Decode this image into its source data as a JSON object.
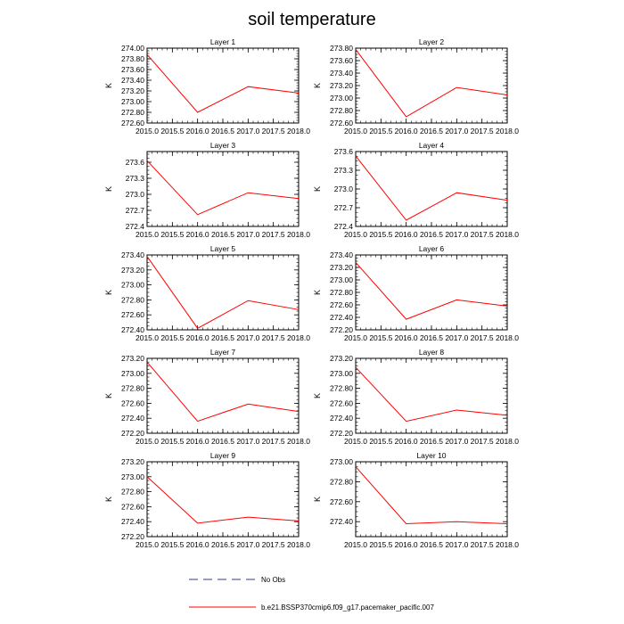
{
  "figure_title": "soil temperature",
  "colors": {
    "model_line": "#ff0000",
    "obs_line": "#2e3a8c",
    "axis": "#000000"
  },
  "legend": {
    "obs_label": "No Obs",
    "model_label": "b.e21.BSSP370cmip6.f09_g17.pacemaker_pacific.007"
  },
  "chart_data": [
    {
      "type": "line",
      "title": "Layer 1",
      "ylabel": "K",
      "x": [
        2015.0,
        2016.0,
        2017.0,
        2018.0
      ],
      "values": [
        273.88,
        272.8,
        273.28,
        273.16
      ],
      "xlim": [
        2015.0,
        2018.0
      ],
      "ylim": [
        272.6,
        274.0
      ],
      "xticks": [
        "2015.0",
        "2015.5",
        "2016.0",
        "2016.5",
        "2017.0",
        "2017.5",
        "2018.0"
      ],
      "yticks": [
        "272.60",
        "272.80",
        "273.00",
        "273.20",
        "273.40",
        "273.60",
        "273.80",
        "274.00"
      ]
    },
    {
      "type": "line",
      "title": "Layer 2",
      "ylabel": "K",
      "x": [
        2015.0,
        2016.0,
        2017.0,
        2018.0
      ],
      "values": [
        273.78,
        272.7,
        273.17,
        273.05
      ],
      "xlim": [
        2015.0,
        2018.0
      ],
      "ylim": [
        272.6,
        273.8
      ],
      "xticks": [
        "2015.0",
        "2015.5",
        "2016.0",
        "2016.5",
        "2017.0",
        "2017.5",
        "2018.0"
      ],
      "yticks": [
        "272.60",
        "272.80",
        "273.00",
        "273.20",
        "273.40",
        "273.60",
        "273.80"
      ]
    },
    {
      "type": "line",
      "title": "Layer 3",
      "ylabel": "K",
      "x": [
        2015.0,
        2016.0,
        2017.0,
        2018.0
      ],
      "values": [
        273.63,
        272.62,
        273.03,
        272.92
      ],
      "xlim": [
        2015.0,
        2018.0
      ],
      "ylim": [
        272.4,
        273.8
      ],
      "xticks": [
        "2015.0",
        "2015.5",
        "2016.0",
        "2016.5",
        "2017.0",
        "2017.5",
        "2018.0"
      ],
      "yticks": [
        "272.4",
        "272.7",
        "273.0",
        "273.3",
        "273.6"
      ]
    },
    {
      "type": "line",
      "title": "Layer 4",
      "ylabel": "K",
      "x": [
        2015.0,
        2016.0,
        2017.0,
        2018.0
      ],
      "values": [
        273.53,
        272.5,
        272.94,
        272.82
      ],
      "xlim": [
        2015.0,
        2018.0
      ],
      "ylim": [
        272.4,
        273.6
      ],
      "xticks": [
        "2015.0",
        "2015.5",
        "2016.0",
        "2016.5",
        "2017.0",
        "2017.5",
        "2018.0"
      ],
      "yticks": [
        "272.4",
        "272.7",
        "273.0",
        "273.3",
        "273.6"
      ]
    },
    {
      "type": "line",
      "title": "Layer 5",
      "ylabel": "K",
      "x": [
        2015.0,
        2016.0,
        2017.0,
        2018.0
      ],
      "values": [
        273.38,
        272.42,
        272.79,
        272.67
      ],
      "xlim": [
        2015.0,
        2018.0
      ],
      "ylim": [
        272.4,
        273.4
      ],
      "xticks": [
        "2015.0",
        "2015.5",
        "2016.0",
        "2016.5",
        "2017.0",
        "2017.5",
        "2018.0"
      ],
      "yticks": [
        "272.40",
        "272.60",
        "272.80",
        "273.00",
        "273.20",
        "273.40"
      ]
    },
    {
      "type": "line",
      "title": "Layer 6",
      "ylabel": "K",
      "x": [
        2015.0,
        2016.0,
        2017.0,
        2018.0
      ],
      "values": [
        273.28,
        272.37,
        272.68,
        272.58
      ],
      "xlim": [
        2015.0,
        2018.0
      ],
      "ylim": [
        272.2,
        273.4
      ],
      "xticks": [
        "2015.0",
        "2015.5",
        "2016.0",
        "2016.5",
        "2017.0",
        "2017.5",
        "2018.0"
      ],
      "yticks": [
        "272.20",
        "272.40",
        "272.60",
        "272.80",
        "273.00",
        "273.20",
        "273.40"
      ]
    },
    {
      "type": "line",
      "title": "Layer 7",
      "ylabel": "K",
      "x": [
        2015.0,
        2016.0,
        2017.0,
        2018.0
      ],
      "values": [
        273.15,
        272.36,
        272.59,
        272.49
      ],
      "xlim": [
        2015.0,
        2018.0
      ],
      "ylim": [
        272.2,
        273.2
      ],
      "xticks": [
        "2015.0",
        "2015.5",
        "2016.0",
        "2016.5",
        "2017.0",
        "2017.5",
        "2018.0"
      ],
      "yticks": [
        "272.20",
        "272.40",
        "272.60",
        "272.80",
        "273.00",
        "273.20"
      ]
    },
    {
      "type": "line",
      "title": "Layer 8",
      "ylabel": "K",
      "x": [
        2015.0,
        2016.0,
        2017.0,
        2018.0
      ],
      "values": [
        273.08,
        272.36,
        272.51,
        272.44
      ],
      "xlim": [
        2015.0,
        2018.0
      ],
      "ylim": [
        272.2,
        273.2
      ],
      "xticks": [
        "2015.0",
        "2015.5",
        "2016.0",
        "2016.5",
        "2017.0",
        "2017.5",
        "2018.0"
      ],
      "yticks": [
        "272.20",
        "272.40",
        "272.60",
        "272.80",
        "273.00",
        "273.20"
      ]
    },
    {
      "type": "line",
      "title": "Layer 9",
      "ylabel": "K",
      "x": [
        2015.0,
        2016.0,
        2017.0,
        2018.0
      ],
      "values": [
        273.0,
        272.38,
        272.46,
        272.41
      ],
      "xlim": [
        2015.0,
        2018.0
      ],
      "ylim": [
        272.2,
        273.2
      ],
      "xticks": [
        "2015.0",
        "2015.5",
        "2016.0",
        "2016.5",
        "2017.0",
        "2017.5",
        "2018.0"
      ],
      "yticks": [
        "272.20",
        "272.40",
        "272.60",
        "272.80",
        "273.00",
        "273.20"
      ]
    },
    {
      "type": "line",
      "title": "Layer 10",
      "ylabel": "K",
      "x": [
        2015.0,
        2016.0,
        2017.0,
        2018.0
      ],
      "values": [
        272.95,
        272.38,
        272.4,
        272.38
      ],
      "xlim": [
        2015.0,
        2018.0
      ],
      "ylim": [
        272.25,
        273.0
      ],
      "xticks": [
        "2015.0",
        "2015.5",
        "2016.0",
        "2016.5",
        "2017.0",
        "2017.5",
        "2018.0"
      ],
      "yticks": [
        "272.40",
        "272.60",
        "272.80",
        "273.00"
      ]
    }
  ]
}
